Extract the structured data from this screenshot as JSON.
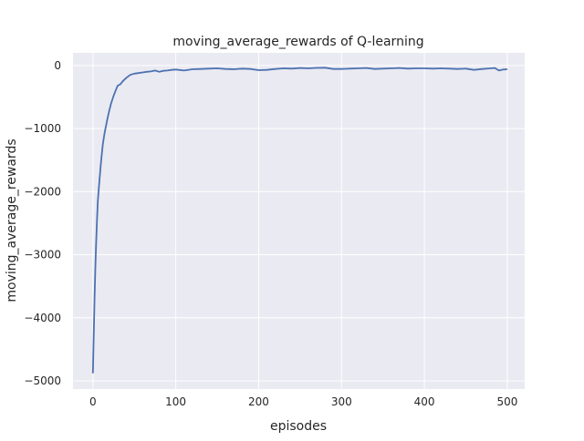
{
  "chart_data": {
    "type": "line",
    "title": "moving_average_rewards of Q-learning",
    "xlabel": "episodes",
    "ylabel": "moving_average_rewards",
    "xlim": [
      -24,
      521
    ],
    "ylim": [
      -5130,
      200
    ],
    "xticks": [
      0,
      100,
      200,
      300,
      400,
      500
    ],
    "yticks": [
      0,
      -1000,
      -2000,
      -3000,
      -4000,
      -5000
    ],
    "grid": true,
    "background": "#eaeaf2",
    "line_color": "#4c72b0",
    "series": [
      {
        "x": [
          0,
          1,
          2,
          3,
          4,
          5,
          6,
          8,
          10,
          12,
          14,
          16,
          18,
          20,
          22,
          25,
          28,
          30,
          33,
          36,
          40,
          45,
          50,
          55,
          60,
          65,
          70,
          75,
          80,
          85,
          90,
          95,
          100,
          110,
          120,
          130,
          140,
          150,
          160,
          170,
          180,
          190,
          200,
          210,
          220,
          230,
          240,
          250,
          260,
          270,
          280,
          290,
          300,
          310,
          320,
          330,
          340,
          350,
          360,
          370,
          380,
          390,
          400,
          410,
          420,
          430,
          440,
          450,
          460,
          470,
          480,
          485,
          490,
          495,
          500
        ],
        "y": [
          -4880,
          -4300,
          -3700,
          -3200,
          -2800,
          -2450,
          -2150,
          -1800,
          -1500,
          -1250,
          -1080,
          -950,
          -820,
          -700,
          -600,
          -480,
          -380,
          -320,
          -300,
          -250,
          -200,
          -150,
          -130,
          -120,
          -110,
          -100,
          -95,
          -80,
          -100,
          -85,
          -80,
          -70,
          -65,
          -80,
          -60,
          -55,
          -50,
          -45,
          -55,
          -60,
          -50,
          -55,
          -75,
          -70,
          -55,
          -45,
          -50,
          -40,
          -45,
          -38,
          -35,
          -55,
          -55,
          -50,
          -45,
          -40,
          -55,
          -50,
          -45,
          -40,
          -50,
          -45,
          -45,
          -50,
          -45,
          -50,
          -55,
          -50,
          -70,
          -55,
          -45,
          -40,
          -80,
          -65,
          -60
        ]
      }
    ]
  }
}
